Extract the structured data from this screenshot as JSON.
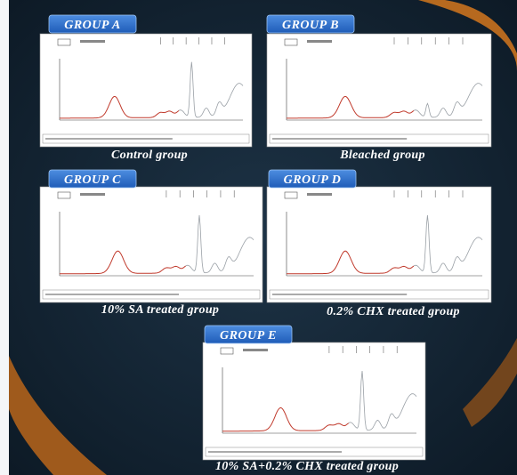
{
  "panels": [
    {
      "label": "GROUP A",
      "caption": "Control group"
    },
    {
      "label": "GROUP B",
      "caption": "Bleached group"
    },
    {
      "label": "GROUP C",
      "caption": "10% SA treated group"
    },
    {
      "label": "GROUP D",
      "caption": "0.2% CHX treated group"
    },
    {
      "label": "GROUP E",
      "caption": "10% SA+0.2% CHX treated group"
    }
  ]
}
